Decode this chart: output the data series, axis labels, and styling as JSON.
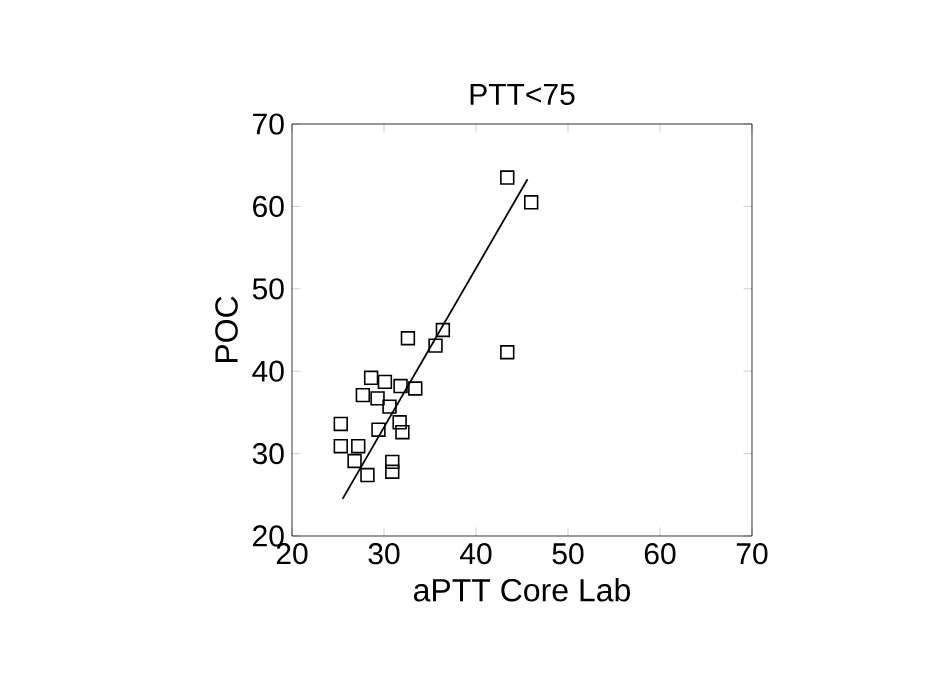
{
  "chart_data": {
    "type": "scatter",
    "title": "PTT<75",
    "xlabel": "aPTT Core Lab",
    "ylabel": "POC",
    "xlim": [
      20,
      70
    ],
    "ylim": [
      20,
      70
    ],
    "xticks": [
      20,
      30,
      40,
      50,
      60,
      70
    ],
    "yticks": [
      20,
      30,
      40,
      50,
      60,
      70
    ],
    "grid": false,
    "legend": false,
    "series": [
      {
        "marker": "square",
        "color": "#000000",
        "x": [
          43.4,
          46.0,
          32.6,
          36.4,
          35.6,
          43.4,
          28.6,
          30.1,
          31.8,
          33.4,
          27.7,
          29.3,
          30.6,
          31.7,
          32.0,
          29.4,
          25.3,
          25.3,
          27.2,
          26.8,
          28.2,
          30.9,
          30.9
        ],
        "values": [
          63.5,
          60.5,
          44.0,
          45.0,
          43.1,
          42.3,
          39.2,
          38.7,
          38.2,
          37.9,
          37.1,
          36.7,
          35.7,
          33.8,
          32.6,
          32.9,
          33.6,
          30.9,
          30.9,
          29.1,
          27.4,
          29.0,
          27.8
        ]
      },
      {
        "type": "line",
        "marker": "none",
        "color": "#000000",
        "x": [
          25.5,
          45.6
        ],
        "values": [
          24.5,
          63.3
        ]
      }
    ]
  }
}
